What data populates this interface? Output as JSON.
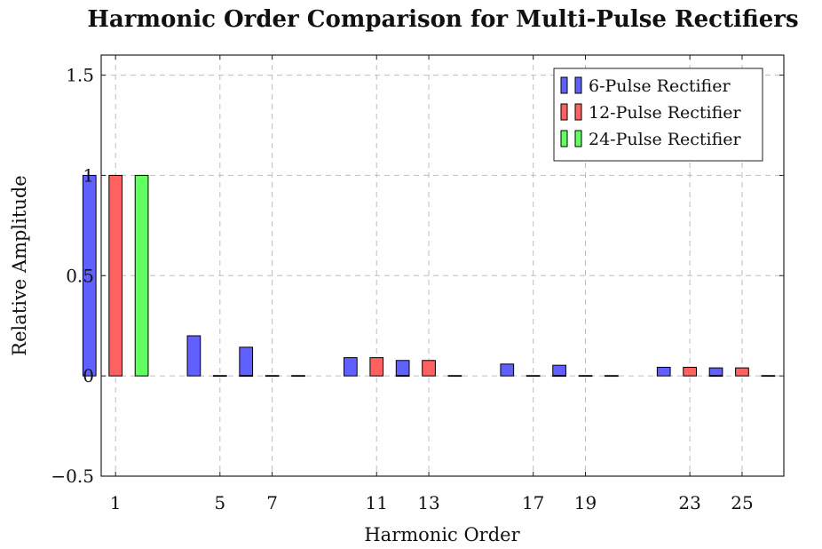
{
  "chart_data": {
    "type": "bar",
    "title": "Harmonic Order Comparison for Multi-Pulse Rectifiers",
    "xlabel": "Harmonic Order",
    "ylabel": "Relative Amplitude",
    "ylim": [
      -0.5,
      1.6
    ],
    "yticks": [
      -0.5,
      0,
      0.5,
      1,
      1.5
    ],
    "ytick_labels": [
      "−0.5",
      "0",
      "0.5",
      "1",
      "1.5"
    ],
    "xlim": [
      0.45,
      26.6
    ],
    "x": [
      1,
      5,
      7,
      11,
      13,
      17,
      19,
      23,
      25
    ],
    "xtick_labels": [
      "1",
      "5",
      "7",
      "11",
      "13",
      "17",
      "19",
      "23",
      "25"
    ],
    "grid": true,
    "legend_position": "top-right",
    "series": [
      {
        "name": "6-Pulse Rectifier",
        "color": "#6060ff",
        "values": [
          1,
          0.2,
          0.143,
          0.091,
          0.077,
          0.059,
          0.053,
          0.043,
          0.04
        ]
      },
      {
        "name": "12-Pulse Rectifier",
        "color": "#ff6060",
        "values": [
          1,
          0,
          0,
          0.091,
          0.077,
          0,
          0,
          0.043,
          0.04
        ]
      },
      {
        "name": "24-Pulse Rectifier",
        "color": "#60ff60",
        "values": [
          1,
          0,
          0,
          0,
          0,
          0,
          0,
          0,
          0
        ]
      }
    ]
  }
}
